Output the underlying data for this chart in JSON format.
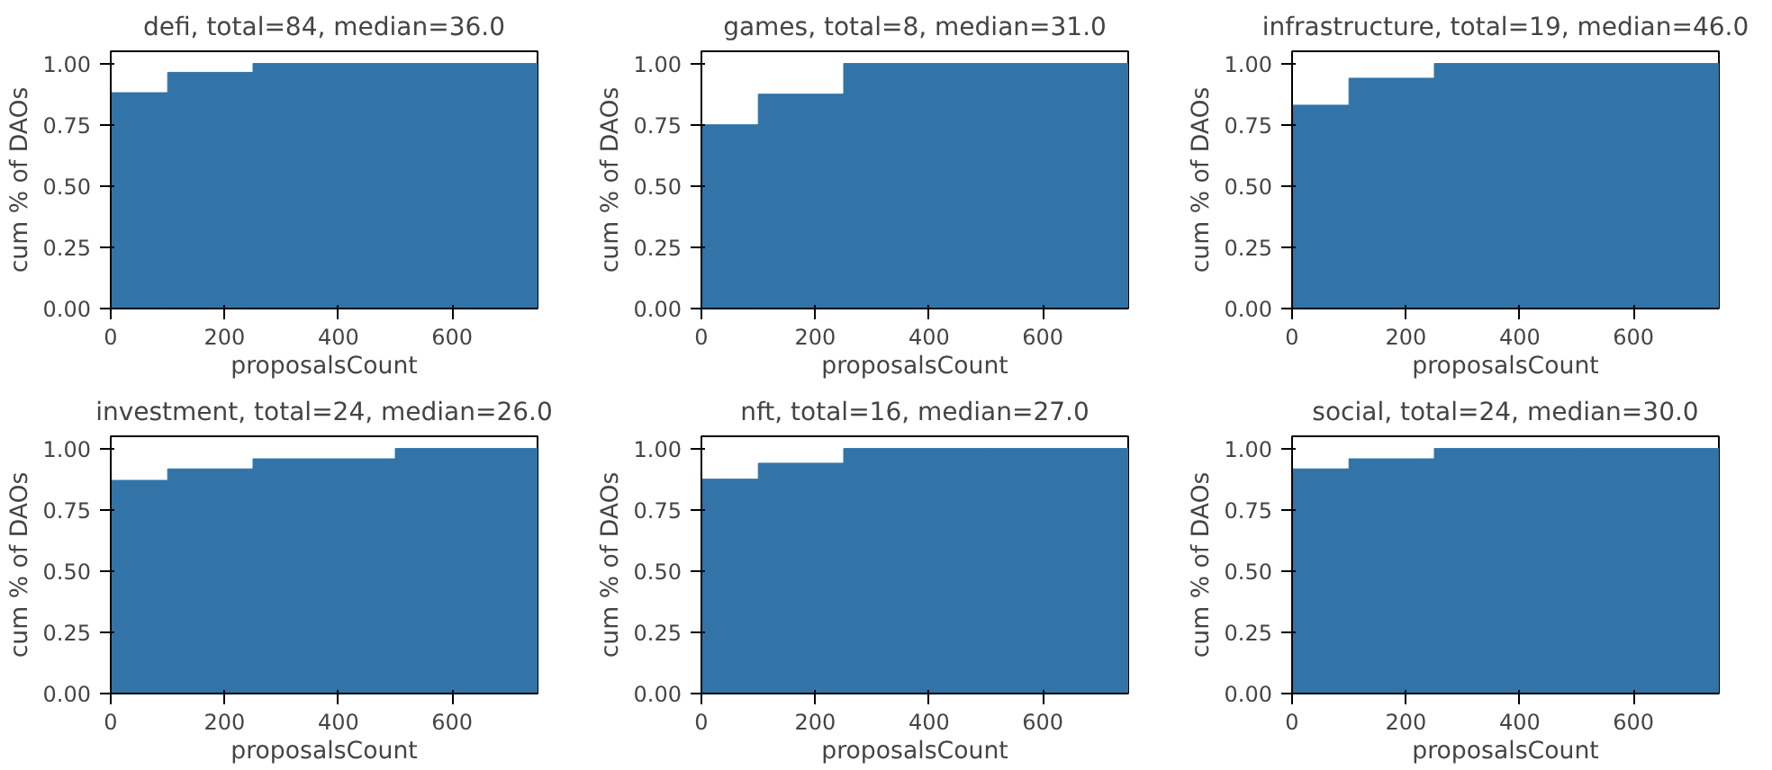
{
  "chart_data": [
    {
      "type": "histogram",
      "title": "defi, total=84, median=36.0",
      "xlabel": "proposalsCount",
      "ylabel": "cum % of DAOs",
      "bins": [
        0,
        100,
        250,
        500,
        750
      ],
      "values": [
        0.881,
        0.964,
        1.0,
        1.0
      ],
      "color": "#3274a8",
      "xlim": [
        0,
        750
      ],
      "ylim": [
        0,
        1.05
      ],
      "xticks": [
        0,
        200,
        400,
        600
      ],
      "yticks": [
        {
          "value": 0,
          "label": "0.00"
        },
        {
          "value": 0.25,
          "label": "0.25"
        },
        {
          "value": 0.5,
          "label": "0.50"
        },
        {
          "value": 0.75,
          "label": "0.75"
        },
        {
          "value": 1,
          "label": "1.00"
        }
      ],
      "grid": false,
      "legend": false
    },
    {
      "type": "histogram",
      "title": "games, total=8, median=31.0",
      "xlabel": "proposalsCount",
      "ylabel": "cum % of DAOs",
      "bins": [
        0,
        100,
        250,
        500,
        750
      ],
      "values": [
        0.75,
        0.875,
        1.0,
        1.0
      ],
      "color": "#3274a8",
      "xlim": [
        0,
        750
      ],
      "ylim": [
        0,
        1.05
      ],
      "xticks": [
        0,
        200,
        400,
        600
      ],
      "yticks": [
        {
          "value": 0,
          "label": "0.00"
        },
        {
          "value": 0.25,
          "label": "0.25"
        },
        {
          "value": 0.5,
          "label": "0.50"
        },
        {
          "value": 0.75,
          "label": "0.75"
        },
        {
          "value": 1,
          "label": "1.00"
        }
      ],
      "grid": false,
      "legend": false
    },
    {
      "type": "histogram",
      "title": "infrastructure, total=19, median=46.0",
      "xlabel": "proposalsCount",
      "ylabel": "cum % of DAOs",
      "bins": [
        0,
        100,
        250,
        500,
        750
      ],
      "values": [
        0.83,
        0.94,
        1.0,
        1.0
      ],
      "color": "#3274a8",
      "xlim": [
        0,
        750
      ],
      "ylim": [
        0,
        1.05
      ],
      "xticks": [
        0,
        200,
        400,
        600
      ],
      "yticks": [
        {
          "value": 0,
          "label": "0.00"
        },
        {
          "value": 0.25,
          "label": "0.25"
        },
        {
          "value": 0.5,
          "label": "0.50"
        },
        {
          "value": 0.75,
          "label": "0.75"
        },
        {
          "value": 1,
          "label": "1.00"
        }
      ],
      "grid": false,
      "legend": false
    },
    {
      "type": "histogram",
      "title": "investment, total=24, median=26.0",
      "xlabel": "proposalsCount",
      "ylabel": "cum % of DAOs",
      "bins": [
        0,
        100,
        250,
        500,
        750
      ],
      "values": [
        0.87,
        0.917,
        0.958,
        1.0
      ],
      "color": "#3274a8",
      "xlim": [
        0,
        750
      ],
      "ylim": [
        0,
        1.05
      ],
      "xticks": [
        0,
        200,
        400,
        600
      ],
      "yticks": [
        {
          "value": 0,
          "label": "0.00"
        },
        {
          "value": 0.25,
          "label": "0.25"
        },
        {
          "value": 0.5,
          "label": "0.50"
        },
        {
          "value": 0.75,
          "label": "0.75"
        },
        {
          "value": 1,
          "label": "1.00"
        }
      ],
      "grid": false,
      "legend": false
    },
    {
      "type": "histogram",
      "title": "nft, total=16, median=27.0",
      "xlabel": "proposalsCount",
      "ylabel": "cum % of DAOs",
      "bins": [
        0,
        100,
        250,
        500,
        750
      ],
      "values": [
        0.875,
        0.94,
        1.0,
        1.0
      ],
      "color": "#3274a8",
      "xlim": [
        0,
        750
      ],
      "ylim": [
        0,
        1.05
      ],
      "xticks": [
        0,
        200,
        400,
        600
      ],
      "yticks": [
        {
          "value": 0,
          "label": "0.00"
        },
        {
          "value": 0.25,
          "label": "0.25"
        },
        {
          "value": 0.5,
          "label": "0.50"
        },
        {
          "value": 0.75,
          "label": "0.75"
        },
        {
          "value": 1,
          "label": "1.00"
        }
      ],
      "grid": false,
      "legend": false
    },
    {
      "type": "histogram",
      "title": "social, total=24, median=30.0",
      "xlabel": "proposalsCount",
      "ylabel": "cum % of DAOs",
      "bins": [
        0,
        100,
        250,
        500,
        750
      ],
      "values": [
        0.917,
        0.958,
        1.0,
        1.0
      ],
      "color": "#3274a8",
      "xlim": [
        0,
        750
      ],
      "ylim": [
        0,
        1.05
      ],
      "xticks": [
        0,
        200,
        400,
        600
      ],
      "yticks": [
        {
          "value": 0,
          "label": "0.00"
        },
        {
          "value": 0.25,
          "label": "0.25"
        },
        {
          "value": 0.5,
          "label": "0.50"
        },
        {
          "value": 0.75,
          "label": "0.75"
        },
        {
          "value": 1,
          "label": "1.00"
        }
      ],
      "grid": false,
      "legend": false
    }
  ]
}
